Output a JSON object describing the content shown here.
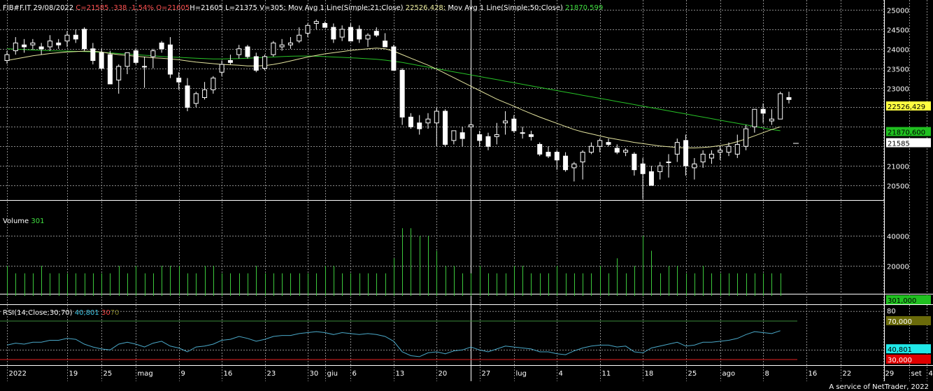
{
  "header": {
    "symbol": "FIB#F.IT",
    "date": "29/08/2022",
    "close": "C=21585",
    "change": "-338",
    "change_pct": "-1,54%",
    "open": "O=21605",
    "high_low_vol": "H=21605 L=21375 V=305;",
    "ma1_label": "Mov Avg 1 Line(Simple;21;Close)",
    "ma1_value": "22526,428;",
    "ma2_label": "Mov Avg 1 Line(Simple;50;Close)",
    "ma2_value": "21870,599"
  },
  "volume_panel": {
    "label": "Volume",
    "value": "301"
  },
  "rsi_panel": {
    "label": "RSI(14;Close;30;70)",
    "value": "40,801",
    "low": "30",
    "high": "70"
  },
  "footer": "A service of NetTrader, 2022",
  "colors": {
    "background": "#000000",
    "grid": "#8a8a8a",
    "candle_up": "#ffffff",
    "candle_down": "#ffffff",
    "ma21": "#e6e6a0",
    "ma50": "#27c227",
    "volume_bar": "#3cc83c",
    "rsi_line": "#4aa8c8",
    "rsi_70_line": "#3a8a3a",
    "rsi_30_line": "#e02020",
    "tag_ma21": "#ffff40",
    "tag_ma50": "#20c020",
    "tag_rsi": "#20e8e8",
    "tag_rsi_70": "#6a6a0a",
    "tag_rsi_30": "#e00000"
  },
  "chart_data": {
    "type": "candlestick",
    "price_axis": {
      "ticks": [
        20500,
        21000,
        21500,
        22000,
        22500,
        23000,
        23500,
        24000,
        24500,
        25000
      ],
      "tick_labels": [
        "20500",
        "21000",
        "",
        "",
        "",
        "23000",
        "23500",
        "24000",
        "24500",
        "25000"
      ],
      "range": [
        20300,
        25100
      ]
    },
    "price_tags": {
      "ma21": "22526,429",
      "ma50": "21870,600",
      "last": "21585"
    },
    "volume_axis": {
      "ticks": [
        20000,
        40000
      ],
      "tick_labels": [
        "20000",
        "40000"
      ],
      "range": [
        0,
        50000
      ],
      "tag": "301,000"
    },
    "rsi_axis": {
      "tick_labels": [
        "80"
      ],
      "range": [
        20,
        90
      ],
      "tags": {
        "high": "70,000",
        "value": "40,801",
        "low": "30,000"
      }
    },
    "x_labels": [
      {
        "i": 0,
        "label": "2022"
      },
      {
        "i": 7,
        "label": "19"
      },
      {
        "i": 11,
        "label": "25"
      },
      {
        "i": 15,
        "label": "mag"
      },
      {
        "i": 20,
        "label": "9"
      },
      {
        "i": 25,
        "label": "16"
      },
      {
        "i": 30,
        "label": "23"
      },
      {
        "i": 35,
        "label": "30"
      },
      {
        "i": 37,
        "label": "giu"
      },
      {
        "i": 40,
        "label": "6"
      },
      {
        "i": 45,
        "label": "13"
      },
      {
        "i": 50,
        "label": "20"
      },
      {
        "i": 55,
        "label": "27"
      },
      {
        "i": 59,
        "label": "lug"
      },
      {
        "i": 64,
        "label": "4"
      },
      {
        "i": 69,
        "label": "11"
      },
      {
        "i": 74,
        "label": "18"
      },
      {
        "i": 79,
        "label": "25"
      },
      {
        "i": 83,
        "label": "ago"
      },
      {
        "i": 88,
        "label": "8"
      },
      {
        "i": 93,
        "label": "16"
      },
      {
        "i": 97,
        "label": "22"
      },
      {
        "i": 102,
        "label": "29"
      },
      {
        "i": 105,
        "label": "set"
      },
      {
        "i": 107,
        "label": "4"
      }
    ],
    "cursor_index": 54,
    "candles": [
      [
        23700,
        23950,
        23620,
        23850
      ],
      [
        23950,
        24300,
        23850,
        24150
      ],
      [
        24100,
        24250,
        23900,
        24050
      ],
      [
        24100,
        24250,
        23980,
        24150
      ],
      [
        24050,
        24150,
        23850,
        24000
      ],
      [
        24050,
        24350,
        23950,
        24200
      ],
      [
        24150,
        24250,
        24000,
        24100
      ],
      [
        24200,
        24450,
        24050,
        24350
      ],
      [
        24350,
        24500,
        24150,
        24250
      ],
      [
        24500,
        24550,
        23950,
        24000
      ],
      [
        24000,
        24150,
        23600,
        23700
      ],
      [
        23900,
        24000,
        23450,
        23500
      ],
      [
        23850,
        23950,
        23100,
        23100
      ],
      [
        23200,
        23600,
        22850,
        23550
      ],
      [
        23550,
        23900,
        23350,
        23900
      ],
      [
        23950,
        24000,
        23600,
        23650
      ],
      [
        23550,
        23800,
        23000,
        23550
      ],
      [
        23800,
        24000,
        23500,
        23950
      ],
      [
        24150,
        24200,
        23900,
        24000
      ],
      [
        24100,
        24300,
        23250,
        23350
      ],
      [
        23250,
        23400,
        22950,
        23150
      ],
      [
        23050,
        23250,
        22400,
        22500
      ],
      [
        22600,
        22900,
        22500,
        22850
      ],
      [
        22750,
        23150,
        22700,
        22950
      ],
      [
        22950,
        23300,
        22850,
        23250
      ],
      [
        23400,
        23700,
        23300,
        23600
      ],
      [
        23700,
        23850,
        23600,
        23650
      ],
      [
        23850,
        24100,
        23750,
        24000
      ],
      [
        24050,
        24100,
        23750,
        23800
      ],
      [
        23800,
        23900,
        23400,
        23450
      ],
      [
        23500,
        23850,
        23450,
        23800
      ],
      [
        23850,
        24200,
        23800,
        24150
      ],
      [
        24050,
        24250,
        23950,
        24100
      ],
      [
        24100,
        24300,
        24000,
        24150
      ],
      [
        24200,
        24550,
        24150,
        24350
      ],
      [
        24400,
        24650,
        24300,
        24600
      ],
      [
        24650,
        24750,
        24500,
        24700
      ],
      [
        24650,
        24700,
        24550,
        24550
      ],
      [
        24550,
        24650,
        24150,
        24250
      ],
      [
        24300,
        24600,
        24200,
        24500
      ],
      [
        24550,
        24650,
        24200,
        24200
      ],
      [
        24500,
        24600,
        24150,
        24250
      ],
      [
        24250,
        24400,
        24050,
        24350
      ],
      [
        24450,
        24550,
        24300,
        24350
      ],
      [
        24200,
        24400,
        24050,
        24050
      ],
      [
        24050,
        24100,
        23450,
        23450
      ],
      [
        23450,
        23500,
        22050,
        22250
      ],
      [
        22250,
        22350,
        21950,
        22000
      ],
      [
        22100,
        22300,
        21800,
        21950
      ],
      [
        22100,
        22350,
        21950,
        22200
      ],
      [
        22100,
        22500,
        21500,
        22400
      ],
      [
        22400,
        22450,
        21500,
        21550
      ],
      [
        21650,
        21900,
        21550,
        21900
      ],
      [
        21850,
        22000,
        21500,
        21700
      ],
      [
        22000,
        22100,
        21900,
        22050
      ],
      [
        21800,
        21900,
        21500,
        21650
      ],
      [
        21750,
        21850,
        21400,
        21500
      ],
      [
        21750,
        22100,
        21550,
        21800
      ],
      [
        22100,
        22400,
        21800,
        22150
      ],
      [
        22200,
        22300,
        21850,
        21900
      ],
      [
        21850,
        22000,
        21700,
        21850
      ],
      [
        21800,
        21900,
        21650,
        21750
      ],
      [
        21550,
        21600,
        21250,
        21300
      ],
      [
        21350,
        21500,
        21200,
        21250
      ],
      [
        21350,
        21400,
        20900,
        21150
      ],
      [
        21250,
        21350,
        20850,
        20900
      ],
      [
        20950,
        21100,
        20600,
        21050
      ],
      [
        21100,
        21400,
        20650,
        21350
      ],
      [
        21350,
        21600,
        21300,
        21500
      ],
      [
        21500,
        21700,
        21350,
        21650
      ],
      [
        21600,
        21700,
        21500,
        21550
      ],
      [
        21450,
        21550,
        21300,
        21350
      ],
      [
        21350,
        21450,
        21250,
        21400
      ],
      [
        21300,
        21350,
        20750,
        20900
      ],
      [
        21050,
        21200,
        20150,
        20800
      ],
      [
        20850,
        21000,
        20500,
        20500
      ],
      [
        20850,
        21100,
        20650,
        21000
      ],
      [
        21100,
        21300,
        20700,
        21100
      ],
      [
        21300,
        21700,
        21100,
        21600
      ],
      [
        21650,
        21800,
        20750,
        21000
      ],
      [
        20950,
        21200,
        20650,
        21050
      ],
      [
        21100,
        21400,
        20950,
        21300
      ],
      [
        21200,
        21400,
        21050,
        21300
      ],
      [
        21350,
        21500,
        21150,
        21400
      ],
      [
        21350,
        21600,
        21250,
        21500
      ],
      [
        21300,
        21800,
        21200,
        21550
      ],
      [
        21500,
        22050,
        21400,
        21950
      ],
      [
        22000,
        22450,
        21850,
        22450
      ],
      [
        22450,
        22600,
        22100,
        22350
      ],
      [
        22150,
        22450,
        22050,
        22200
      ],
      [
        22200,
        22900,
        22200,
        22850
      ],
      [
        22750,
        22900,
        22600,
        22700
      ]
    ],
    "ma21": [
      23700,
      23740,
      23780,
      23820,
      23850,
      23880,
      23900,
      23920,
      23930,
      23940,
      23935,
      23920,
      23880,
      23850,
      23830,
      23810,
      23790,
      23770,
      23760,
      23740,
      23720,
      23690,
      23660,
      23640,
      23620,
      23600,
      23590,
      23580,
      23560,
      23560,
      23570,
      23600,
      23640,
      23690,
      23740,
      23790,
      23830,
      23870,
      23900,
      23930,
      23960,
      23980,
      24000,
      24020,
      24000,
      23940,
      23850,
      23760,
      23670,
      23580,
      23480,
      23370,
      23260,
      23150,
      23040,
      22930,
      22820,
      22710,
      22620,
      22530,
      22430,
      22340,
      22250,
      22170,
      22090,
      22010,
      21930,
      21870,
      21820,
      21770,
      21720,
      21680,
      21640,
      21600,
      21570,
      21540,
      21510,
      21490,
      21470,
      21460,
      21460,
      21470,
      21490,
      21520,
      21560,
      21620,
      21690,
      21770,
      21850,
      21930,
      22000
    ],
    "ma50": [
      24000,
      23990,
      23980,
      23970,
      23960,
      23950,
      23945,
      23940,
      23935,
      23930,
      23920,
      23910,
      23895,
      23880,
      23865,
      23850,
      23835,
      23820,
      23805,
      23790,
      23780,
      23770,
      23760,
      23750,
      23740,
      23740,
      23745,
      23750,
      23760,
      23770,
      23780,
      23790,
      23800,
      23810,
      23815,
      23815,
      23810,
      23800,
      23790,
      23780,
      23770,
      23760,
      23745,
      23730,
      23710,
      23680,
      23650,
      23610,
      23570,
      23530,
      23490,
      23450,
      23410,
      23370,
      23330,
      23290,
      23250,
      23210,
      23170,
      23130,
      23090,
      23050,
      23010,
      22970,
      22930,
      22890,
      22850,
      22810,
      22770,
      22730,
      22690,
      22650,
      22610,
      22570,
      22530,
      22490,
      22450,
      22410,
      22370,
      22330,
      22290,
      22250,
      22210,
      22170,
      22130,
      22090,
      22050,
      22010,
      21970,
      21930,
      21900
    ],
    "volume": [
      20000,
      15000,
      15000,
      15000,
      20000,
      15000,
      15000,
      15000,
      15000,
      15000,
      15000,
      15000,
      15000,
      20000,
      15000,
      20000,
      15000,
      15000,
      20000,
      20000,
      20000,
      15000,
      15000,
      20000,
      20000,
      15000,
      15000,
      15000,
      15000,
      20000,
      15000,
      15000,
      15000,
      15000,
      15000,
      15000,
      15000,
      20000,
      20000,
      15000,
      15000,
      15000,
      15000,
      15000,
      15000,
      25000,
      45000,
      45000,
      40000,
      40000,
      30000,
      20000,
      20000,
      15000,
      15000,
      20000,
      15000,
      15000,
      15000,
      20000,
      20000,
      15000,
      15000,
      15000,
      20000,
      15000,
      15000,
      15000,
      15000,
      20000,
      15000,
      25000,
      15000,
      20000,
      40000,
      30000,
      15000,
      20000,
      20000,
      15000,
      15000,
      20000,
      15000,
      15000,
      15000,
      15000,
      15000,
      15000,
      15000,
      15000,
      15000
    ],
    "rsi": [
      45,
      47,
      46,
      48,
      48,
      50,
      50,
      52,
      51,
      46,
      43,
      41,
      40,
      46,
      48,
      46,
      43,
      47,
      49,
      44,
      42,
      38,
      43,
      44,
      46,
      50,
      51,
      54,
      52,
      49,
      51,
      54,
      55,
      55,
      57,
      58,
      59,
      58,
      56,
      58,
      57,
      56,
      57,
      56,
      54,
      49,
      38,
      34,
      33,
      37,
      38,
      36,
      39,
      40,
      43,
      40,
      38,
      41,
      44,
      43,
      42,
      41,
      38,
      38,
      36,
      35,
      39,
      42,
      44,
      45,
      45,
      43,
      44,
      38,
      37,
      42,
      44,
      46,
      48,
      44,
      45,
      48,
      48,
      49,
      50,
      52,
      56,
      59,
      58,
      57,
      60
    ]
  }
}
